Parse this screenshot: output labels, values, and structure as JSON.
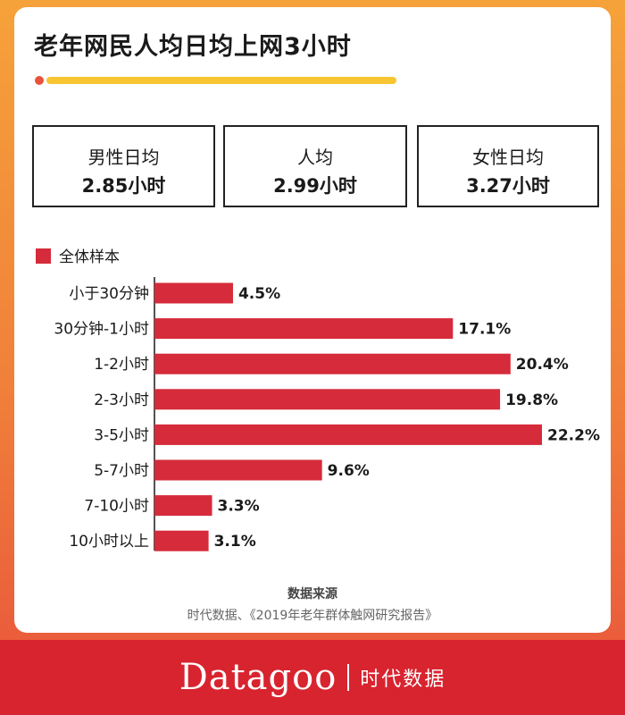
{
  "title": "老年网民人均日均上网3小时",
  "colors": {
    "accent": "#d52b3a",
    "underline": "#f7c531",
    "dot": "#e8533c",
    "footer": "#d8242f"
  },
  "stats": [
    {
      "label": "男性日均",
      "value": "2.85小时"
    },
    {
      "label": "人均",
      "value": "2.99小时"
    },
    {
      "label": "女性日均",
      "value": "3.27小时"
    }
  ],
  "chart_data": {
    "type": "bar",
    "orientation": "horizontal",
    "categories": [
      "小于30分钟",
      "30分钟-1小时",
      "1-2小时",
      "2-3小时",
      "3-5小时",
      "5-7小时",
      "7-10小时",
      "10小时以上"
    ],
    "series": [
      {
        "name": "全体样本",
        "values": [
          4.5,
          17.1,
          20.4,
          19.8,
          22.2,
          9.6,
          3.3,
          3.1
        ],
        "value_labels": [
          "4.5%",
          "17.1%",
          "20.4%",
          "19.8%",
          "22.2%",
          "9.6%",
          "3.3%",
          "3.1%"
        ]
      }
    ],
    "legend": "top-left",
    "grid": false
  },
  "source": {
    "heading": "数据来源",
    "text": "时代数据、《2019年老年群体触网研究报告》"
  },
  "footer": {
    "logo": "Datagoo",
    "brand": "时代数据"
  }
}
